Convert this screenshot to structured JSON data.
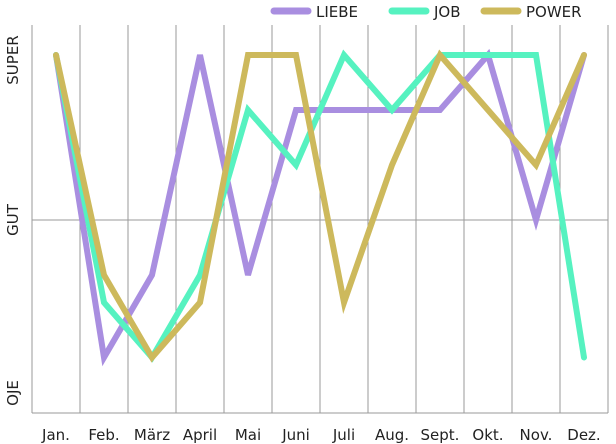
{
  "chart_data": {
    "type": "line",
    "title": "",
    "xlabel": "",
    "ylabel": "",
    "categories": [
      "Jan.",
      "Feb.",
      "März",
      "April",
      "Mai",
      "Juni",
      "Juli",
      "Aug.",
      "Sept.",
      "Okt.",
      "Nov.",
      "Dez."
    ],
    "y_levels": [
      {
        "label": "OJE",
        "value": 0
      },
      {
        "label": "GUT",
        "value": 3
      },
      {
        "label": "SUPER",
        "value": 6
      }
    ],
    "ylim": [
      -0.5,
      6.5
    ],
    "grid": true,
    "legend_position": "top-right",
    "series": [
      {
        "name": "LIEBE",
        "color": "#a98ee0",
        "values": [
          6,
          0.5,
          2,
          6,
          2,
          5,
          5,
          5,
          5,
          6,
          3,
          6
        ]
      },
      {
        "name": "JOB",
        "color": "#56f2c0",
        "values": [
          6,
          1.5,
          0.5,
          2,
          5,
          4,
          6,
          5,
          6,
          6,
          6,
          0.5
        ]
      },
      {
        "name": "POWER",
        "color": "#cdb95c",
        "values": [
          6,
          2,
          0.5,
          1.5,
          6,
          6,
          1.5,
          4,
          6,
          5,
          4,
          6
        ]
      }
    ]
  }
}
